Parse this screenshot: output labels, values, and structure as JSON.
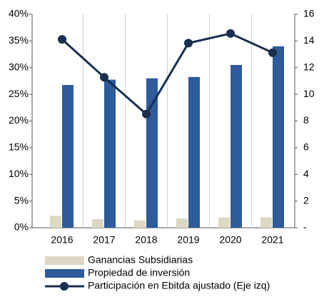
{
  "chart_data": {
    "type": "bar",
    "categories": [
      "2016",
      "2017",
      "2018",
      "2019",
      "2020",
      "2021"
    ],
    "series": [
      {
        "name": "Ganancias Subsidiarias",
        "type": "bar",
        "color": "#ddd8c4",
        "axis": "y2",
        "values": [
          0.9,
          0.65,
          0.55,
          0.7,
          0.78,
          0.78
        ]
      },
      {
        "name": "Propiedad de inversión",
        "type": "bar",
        "color": "#2e5b9a",
        "axis": "y2",
        "values": [
          10.7,
          11.1,
          11.2,
          11.3,
          12.2,
          13.6
        ]
      },
      {
        "name": "Participación en Ebitda ajustado (Eje izq)",
        "type": "line",
        "color": "#1a2e4f",
        "values": [
          35.3,
          28.2,
          21.3,
          34.6,
          36.4,
          32.8
        ]
      }
    ],
    "ylim": [
      0,
      40
    ],
    "yticks": [
      {
        "value": 0,
        "label": "0%"
      },
      {
        "value": 5,
        "label": "5%"
      },
      {
        "value": 10,
        "label": "10%"
      },
      {
        "value": 15,
        "label": "15%"
      },
      {
        "value": 20,
        "label": "20%"
      },
      {
        "value": 25,
        "label": "25%"
      },
      {
        "value": 30,
        "label": "30%"
      },
      {
        "value": 35,
        "label": "35%"
      },
      {
        "value": 40,
        "label": "40%"
      }
    ],
    "y2lim": [
      0,
      16
    ],
    "y2ticks": [
      {
        "value": 0,
        "label": "-"
      },
      2,
      4,
      6,
      8,
      10,
      12,
      14,
      16
    ],
    "grid": false,
    "legend": "bottom"
  }
}
